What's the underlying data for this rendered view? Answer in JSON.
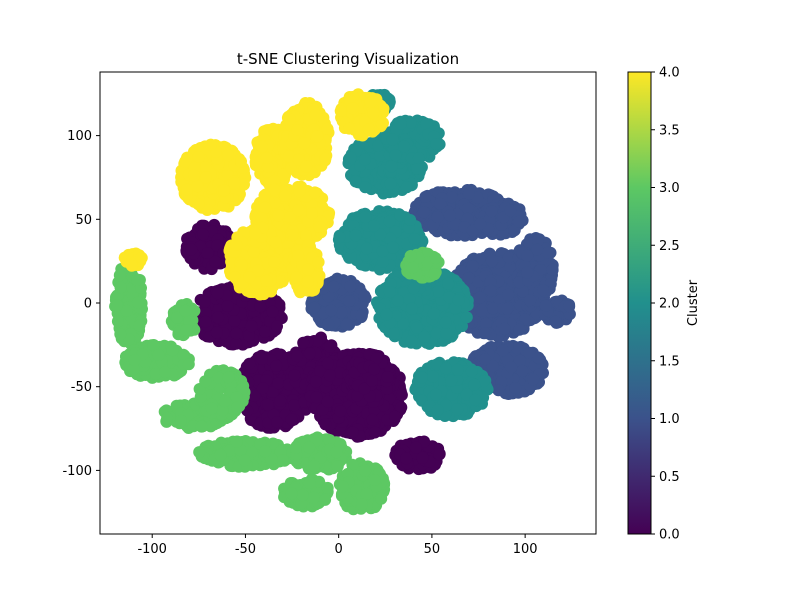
{
  "chart_data": {
    "type": "scatter",
    "title": "t-SNE Clustering Visualization",
    "xlabel": "",
    "ylabel": "",
    "xlim": [
      -128,
      138
    ],
    "ylim": [
      -138,
      138
    ],
    "x_ticks": [
      -100,
      -50,
      0,
      50,
      100
    ],
    "y_ticks": [
      -100,
      -50,
      0,
      50,
      100
    ],
    "grid": false,
    "colorbar": {
      "label": "Cluster",
      "range": [
        0.0,
        4.0
      ],
      "ticks": [
        "0.0",
        "0.5",
        "1.0",
        "1.5",
        "2.0",
        "2.5",
        "3.0",
        "3.5",
        "4.0"
      ],
      "colormap": "viridis",
      "colors": [
        "#440154",
        "#3b528b",
        "#21908d",
        "#5dc863",
        "#fde725"
      ]
    },
    "clusters": [
      {
        "value": 0,
        "color": "#440154",
        "regions": [
          {
            "x": [
              -82,
              -58
            ],
            "y": [
              20,
              48
            ]
          },
          {
            "x": [
              -78,
              -30
            ],
            "y": [
              -25,
              10
            ]
          },
          {
            "x": [
              -55,
              -15
            ],
            "y": [
              -75,
              -30
            ]
          },
          {
            "x": [
              -25,
              0
            ],
            "y": [
              -55,
              -20
            ]
          },
          {
            "x": [
              -15,
              35
            ],
            "y": [
              -80,
              -30
            ]
          },
          {
            "x": [
              5,
              28
            ],
            "y": [
              -60,
              -30
            ]
          },
          {
            "x": [
              30,
              55
            ],
            "y": [
              -100,
              -82
            ]
          }
        ]
      },
      {
        "value": 1,
        "color": "#3b528b",
        "regions": [
          {
            "x": [
              -15,
              15
            ],
            "y": [
              -15,
              15
            ]
          },
          {
            "x": [
              40,
              90
            ],
            "y": [
              40,
              68
            ]
          },
          {
            "x": [
              60,
              110
            ],
            "y": [
              -20,
              30
            ]
          },
          {
            "x": [
              95,
              115
            ],
            "y": [
              0,
              40
            ]
          },
          {
            "x": [
              70,
              110
            ],
            "y": [
              -55,
              -25
            ]
          },
          {
            "x": [
              110,
              125
            ],
            "y": [
              -12,
              2
            ]
          },
          {
            "x": [
              75,
              100
            ],
            "y": [
              40,
              60
            ]
          }
        ]
      },
      {
        "value": 2,
        "color": "#21908d",
        "regions": [
          {
            "x": [
              0,
              45
            ],
            "y": [
              20,
              55
            ]
          },
          {
            "x": [
              5,
              45
            ],
            "y": [
              65,
              100
            ]
          },
          {
            "x": [
              25,
              55
            ],
            "y": [
              85,
              110
            ]
          },
          {
            "x": [
              20,
              70
            ],
            "y": [
              -25,
              20
            ]
          },
          {
            "x": [
              40,
              80
            ],
            "y": [
              -68,
              -35
            ]
          },
          {
            "x": [
              15,
              28
            ],
            "y": [
              115,
              125
            ]
          }
        ]
      },
      {
        "value": 3,
        "color": "#5dc863",
        "regions": [
          {
            "x": [
              -120,
              -105
            ],
            "y": [
              -25,
              25
            ]
          },
          {
            "x": [
              -115,
              -80
            ],
            "y": [
              -45,
              -25
            ]
          },
          {
            "x": [
              -95,
              -60
            ],
            "y": [
              -75,
              -60
            ]
          },
          {
            "x": [
              -75,
              -25
            ],
            "y": [
              -98,
              -82
            ]
          },
          {
            "x": [
              -25,
              5
            ],
            "y": [
              -100,
              -80
            ]
          },
          {
            "x": [
              -30,
              -5
            ],
            "y": [
              -122,
              -105
            ]
          },
          {
            "x": [
              0,
              25
            ],
            "y": [
              -125,
              -95
            ]
          },
          {
            "x": [
              -75,
              -50
            ],
            "y": [
              -70,
              -40
            ]
          },
          {
            "x": [
              -90,
              -75
            ],
            "y": [
              -20,
              0
            ]
          },
          {
            "x": [
              35,
              55
            ],
            "y": [
              15,
              30
            ]
          }
        ]
      },
      {
        "value": 4,
        "color": "#fde725",
        "regions": [
          {
            "x": [
              -85,
              -50
            ],
            "y": [
              55,
              95
            ]
          },
          {
            "x": [
              -45,
              -25
            ],
            "y": [
              70,
              105
            ]
          },
          {
            "x": [
              -30,
              -5
            ],
            "y": [
              75,
              120
            ]
          },
          {
            "x": [
              -45,
              -5
            ],
            "y": [
              35,
              70
            ]
          },
          {
            "x": [
              -60,
              -25
            ],
            "y": [
              5,
              45
            ]
          },
          {
            "x": [
              -25,
              -10
            ],
            "y": [
              5,
              35
            ]
          },
          {
            "x": [
              0,
              25
            ],
            "y": [
              100,
              125
            ]
          },
          {
            "x": [
              -115,
              -105
            ],
            "y": [
              22,
              30
            ]
          }
        ]
      }
    ]
  }
}
